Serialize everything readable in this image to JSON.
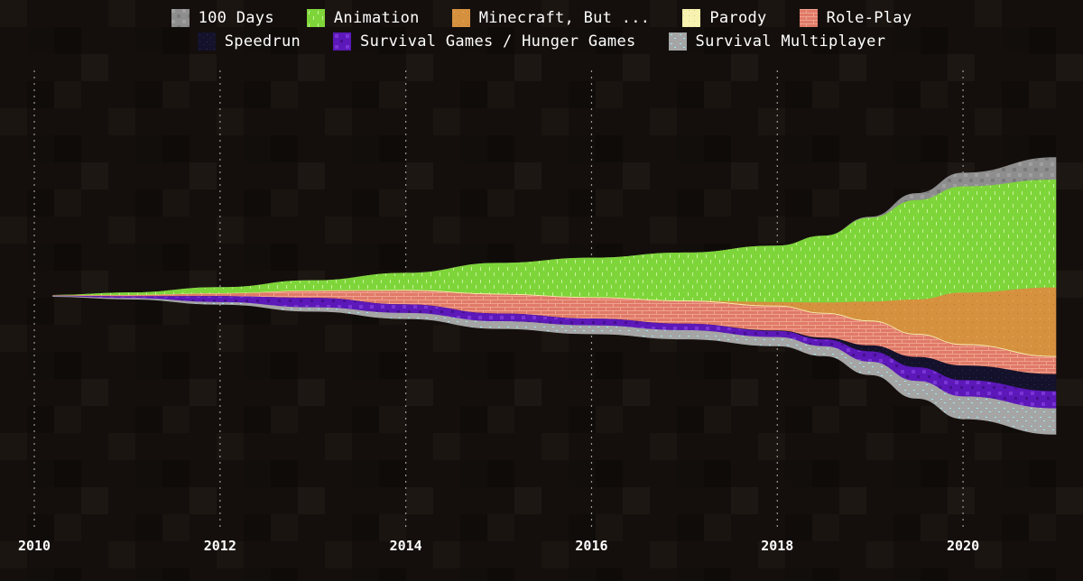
{
  "legend": {
    "row1": [
      {
        "label": "100 Days",
        "series": 0
      },
      {
        "label": "Animation",
        "series": 1
      },
      {
        "label": "Minecraft, But ...",
        "series": 2
      },
      {
        "label": "Parody",
        "series": 3
      },
      {
        "label": "Role-Play",
        "series": 4
      }
    ],
    "row2": [
      {
        "label": "Speedrun",
        "series": 5
      },
      {
        "label": "Survival Games / Hunger Games",
        "series": 6
      },
      {
        "label": "Survival Multiplayer",
        "series": 7
      }
    ]
  },
  "chart_data": {
    "type": "area",
    "layout": "streamgraph",
    "x": [
      2010.2,
      2011,
      2012,
      2013,
      2014,
      2015,
      2016,
      2017,
      2018,
      2018.5,
      2019,
      2019.5,
      2020,
      2021
    ],
    "xlim": [
      2010,
      2021
    ],
    "x_ticks": [
      2010,
      2012,
      2014,
      2016,
      2018,
      2020
    ],
    "x_tick_labels": [
      "2010",
      "2012",
      "2014",
      "2016",
      "2018",
      "2020"
    ],
    "grid": "vertical dotted",
    "legend_position": "top",
    "series": [
      {
        "name": "100 Days",
        "color": "#8e8e8e",
        "values": [
          0,
          0,
          0,
          0,
          0,
          0,
          0,
          0,
          0,
          0,
          0.05,
          0.4,
          0.8,
          1.3
        ]
      },
      {
        "name": "Animation",
        "color": "#7ed53a",
        "values": [
          0.02,
          0.15,
          0.35,
          0.6,
          1.0,
          1.8,
          2.3,
          2.8,
          3.3,
          3.9,
          4.9,
          5.8,
          6.2,
          6.3
        ]
      },
      {
        "name": "Minecraft, But ...",
        "color": "#d6913f",
        "values": [
          0,
          0,
          0,
          0,
          0,
          0,
          0,
          0,
          0.2,
          0.6,
          1.1,
          2.0,
          3.0,
          4.0
        ]
      },
      {
        "name": "Parody",
        "color": "#f7f2b0",
        "values": [
          0,
          0.01,
          0.02,
          0.03,
          0.04,
          0.05,
          0.05,
          0.05,
          0.05,
          0.05,
          0.05,
          0.05,
          0.05,
          0.05
        ]
      },
      {
        "name": "Role-Play",
        "color": "#e07a68",
        "values": [
          0.02,
          0.06,
          0.15,
          0.4,
          0.8,
          1.1,
          1.2,
          1.3,
          1.4,
          1.4,
          1.4,
          1.3,
          1.2,
          1.0
        ]
      },
      {
        "name": "Speedrun",
        "color": "#14122b",
        "values": [
          0,
          0,
          0,
          0,
          0,
          0,
          0,
          0,
          0.03,
          0.1,
          0.35,
          0.6,
          0.85,
          1.0
        ]
      },
      {
        "name": "Survival Games / Hunger Games",
        "color": "#5c18b8",
        "values": [
          0.02,
          0.1,
          0.35,
          0.55,
          0.5,
          0.45,
          0.4,
          0.38,
          0.36,
          0.4,
          0.6,
          0.8,
          0.95,
          1.0
        ]
      },
      {
        "name": "Survival Multiplayer",
        "color": "#a5a5a5",
        "values": [
          0.01,
          0.05,
          0.12,
          0.22,
          0.32,
          0.42,
          0.48,
          0.5,
          0.5,
          0.55,
          0.75,
          1.0,
          1.3,
          1.5
        ]
      }
    ]
  }
}
